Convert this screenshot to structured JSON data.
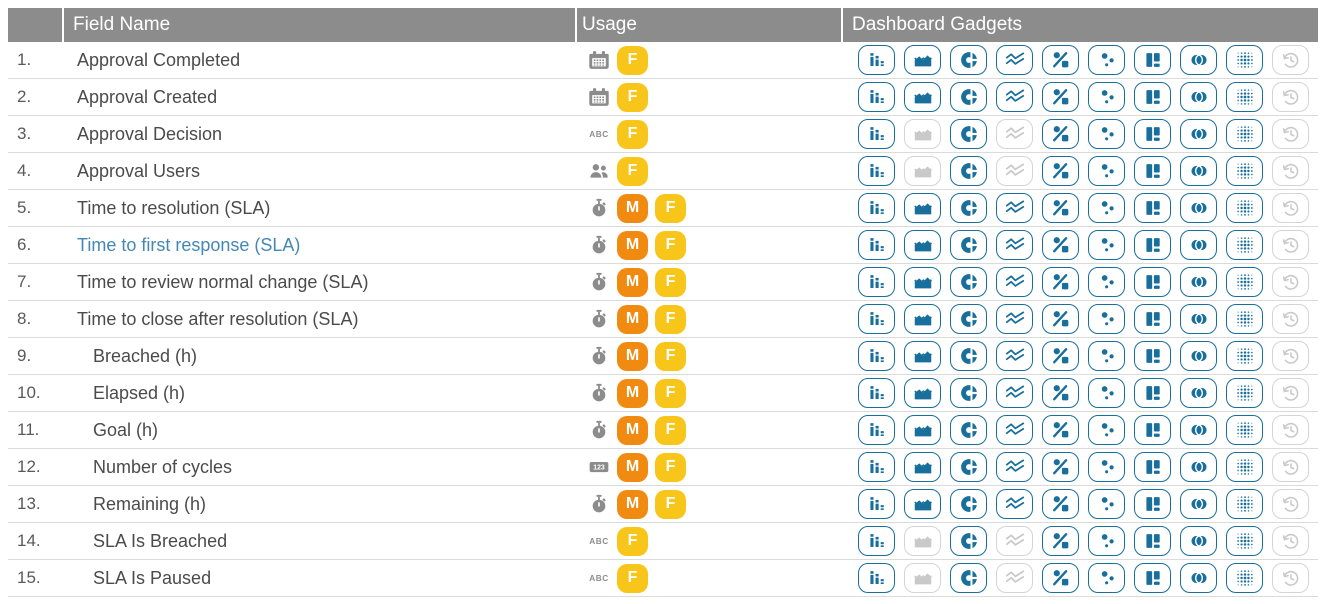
{
  "header": {
    "col_num": "",
    "col_field": "Field Name",
    "col_usage": "Usage",
    "col_gadgets": "Dashboard Gadgets"
  },
  "gadget_types": [
    "bar-chart",
    "area-chart",
    "pie-chart",
    "line-chart",
    "percent-ratio",
    "scatter",
    "blocks",
    "overlap-circles",
    "dot-grid",
    "history"
  ],
  "usage_icon_types": [
    "calendar",
    "text-abc",
    "users",
    "stopwatch",
    "number-123"
  ],
  "rows": [
    {
      "num": "1.",
      "name": "Approval Completed",
      "indent": false,
      "highlighted": false,
      "usage_icon": "calendar",
      "badges": [
        "F"
      ],
      "gadgets": [
        1,
        1,
        1,
        1,
        1,
        1,
        1,
        1,
        1,
        0
      ]
    },
    {
      "num": "2.",
      "name": "Approval Created",
      "indent": false,
      "highlighted": false,
      "usage_icon": "calendar",
      "badges": [
        "F"
      ],
      "gadgets": [
        1,
        1,
        1,
        1,
        1,
        1,
        1,
        1,
        1,
        0
      ]
    },
    {
      "num": "3.",
      "name": "Approval Decision",
      "indent": false,
      "highlighted": false,
      "usage_icon": "text-abc",
      "badges": [
        "F"
      ],
      "gadgets": [
        1,
        0,
        1,
        0,
        1,
        1,
        1,
        1,
        1,
        0
      ]
    },
    {
      "num": "4.",
      "name": "Approval Users",
      "indent": false,
      "highlighted": false,
      "usage_icon": "users",
      "badges": [
        "F"
      ],
      "gadgets": [
        1,
        0,
        1,
        0,
        1,
        1,
        1,
        1,
        1,
        0
      ]
    },
    {
      "num": "5.",
      "name": "Time to resolution (SLA)",
      "indent": false,
      "highlighted": false,
      "usage_icon": "stopwatch",
      "badges": [
        "M",
        "F"
      ],
      "gadgets": [
        1,
        1,
        1,
        1,
        1,
        1,
        1,
        1,
        1,
        0
      ]
    },
    {
      "num": "6.",
      "name": "Time to first response (SLA)",
      "indent": false,
      "highlighted": true,
      "usage_icon": "stopwatch",
      "badges": [
        "M",
        "F"
      ],
      "gadgets": [
        1,
        1,
        1,
        1,
        1,
        1,
        1,
        1,
        1,
        0
      ]
    },
    {
      "num": "7.",
      "name": "Time to review normal change (SLA)",
      "indent": false,
      "highlighted": false,
      "usage_icon": "stopwatch",
      "badges": [
        "M",
        "F"
      ],
      "gadgets": [
        1,
        1,
        1,
        1,
        1,
        1,
        1,
        1,
        1,
        0
      ]
    },
    {
      "num": "8.",
      "name": "Time to close after resolution (SLA)",
      "indent": false,
      "highlighted": false,
      "usage_icon": "stopwatch",
      "badges": [
        "M",
        "F"
      ],
      "gadgets": [
        1,
        1,
        1,
        1,
        1,
        1,
        1,
        1,
        1,
        0
      ]
    },
    {
      "num": "9.",
      "name": "Breached (h)",
      "indent": true,
      "highlighted": false,
      "usage_icon": "stopwatch",
      "badges": [
        "M",
        "F"
      ],
      "gadgets": [
        1,
        1,
        1,
        1,
        1,
        1,
        1,
        1,
        1,
        0
      ]
    },
    {
      "num": "10.",
      "name": "Elapsed (h)",
      "indent": true,
      "highlighted": false,
      "usage_icon": "stopwatch",
      "badges": [
        "M",
        "F"
      ],
      "gadgets": [
        1,
        1,
        1,
        1,
        1,
        1,
        1,
        1,
        1,
        0
      ]
    },
    {
      "num": "11.",
      "name": "Goal (h)",
      "indent": true,
      "highlighted": false,
      "usage_icon": "stopwatch",
      "badges": [
        "M",
        "F"
      ],
      "gadgets": [
        1,
        1,
        1,
        1,
        1,
        1,
        1,
        1,
        1,
        0
      ]
    },
    {
      "num": "12.",
      "name": "Number of cycles",
      "indent": true,
      "highlighted": false,
      "usage_icon": "number-123",
      "badges": [
        "M",
        "F"
      ],
      "gadgets": [
        1,
        1,
        1,
        1,
        1,
        1,
        1,
        1,
        1,
        0
      ]
    },
    {
      "num": "13.",
      "name": "Remaining (h)",
      "indent": true,
      "highlighted": false,
      "usage_icon": "stopwatch",
      "badges": [
        "M",
        "F"
      ],
      "gadgets": [
        1,
        1,
        1,
        1,
        1,
        1,
        1,
        1,
        1,
        0
      ]
    },
    {
      "num": "14.",
      "name": "SLA Is Breached",
      "indent": true,
      "highlighted": false,
      "usage_icon": "text-abc",
      "badges": [
        "F"
      ],
      "gadgets": [
        1,
        0,
        1,
        0,
        1,
        1,
        1,
        1,
        1,
        0
      ]
    },
    {
      "num": "15.",
      "name": "SLA Is Paused",
      "indent": true,
      "highlighted": false,
      "usage_icon": "text-abc",
      "badges": [
        "F"
      ],
      "gadgets": [
        1,
        0,
        1,
        0,
        1,
        1,
        1,
        1,
        1,
        0
      ]
    }
  ],
  "colors": {
    "accent_teal": "#186f9c",
    "disabled_gray": "#c9c9c9",
    "badge_f": "#f8c51b",
    "badge_m": "#f18a10",
    "header_bg": "#8c8c8c",
    "highlight_blue": "#4488b5",
    "usage_icon_gray": "#8c8c8c",
    "row_text": "#4b4b4b",
    "divider": "#dbdbdb"
  }
}
